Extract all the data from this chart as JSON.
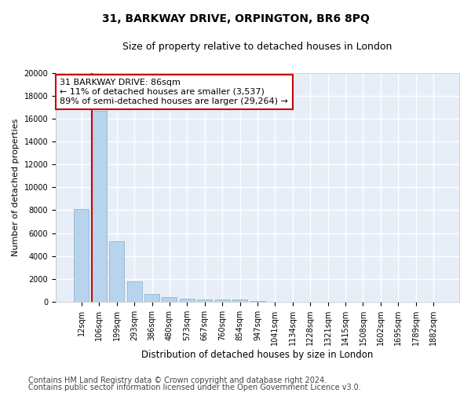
{
  "title": "31, BARKWAY DRIVE, ORPINGTON, BR6 8PQ",
  "subtitle": "Size of property relative to detached houses in London",
  "xlabel": "Distribution of detached houses by size in London",
  "ylabel": "Number of detached properties",
  "categories": [
    "12sqm",
    "106sqm",
    "199sqm",
    "293sqm",
    "386sqm",
    "480sqm",
    "573sqm",
    "667sqm",
    "760sqm",
    "854sqm",
    "947sqm",
    "1041sqm",
    "1134sqm",
    "1228sqm",
    "1321sqm",
    "1415sqm",
    "1508sqm",
    "1602sqm",
    "1695sqm",
    "1789sqm",
    "1882sqm"
  ],
  "values": [
    8100,
    16700,
    5300,
    1750,
    700,
    380,
    280,
    200,
    175,
    200,
    80,
    0,
    0,
    0,
    0,
    0,
    0,
    0,
    0,
    0,
    0
  ],
  "bar_color": "#b8d4ed",
  "bar_edgecolor": "#7aafd4",
  "highlight_color": "#cc0000",
  "background_color": "#e8eef8",
  "grid_color": "#ffffff",
  "annotation_text": "31 BARKWAY DRIVE: 86sqm\n← 11% of detached houses are smaller (3,537)\n89% of semi-detached houses are larger (29,264) →",
  "annotation_box_color": "#ffffff",
  "annotation_box_edgecolor": "#cc0000",
  "ylim": [
    0,
    20000
  ],
  "yticks": [
    0,
    2000,
    4000,
    6000,
    8000,
    10000,
    12000,
    14000,
    16000,
    18000,
    20000
  ],
  "footer_line1": "Contains HM Land Registry data © Crown copyright and database right 2024.",
  "footer_line2": "Contains public sector information licensed under the Open Government Licence v3.0.",
  "title_fontsize": 10,
  "subtitle_fontsize": 9,
  "ylabel_fontsize": 8,
  "xlabel_fontsize": 8.5,
  "tick_fontsize": 7,
  "annotation_fontsize": 8,
  "footer_fontsize": 7
}
